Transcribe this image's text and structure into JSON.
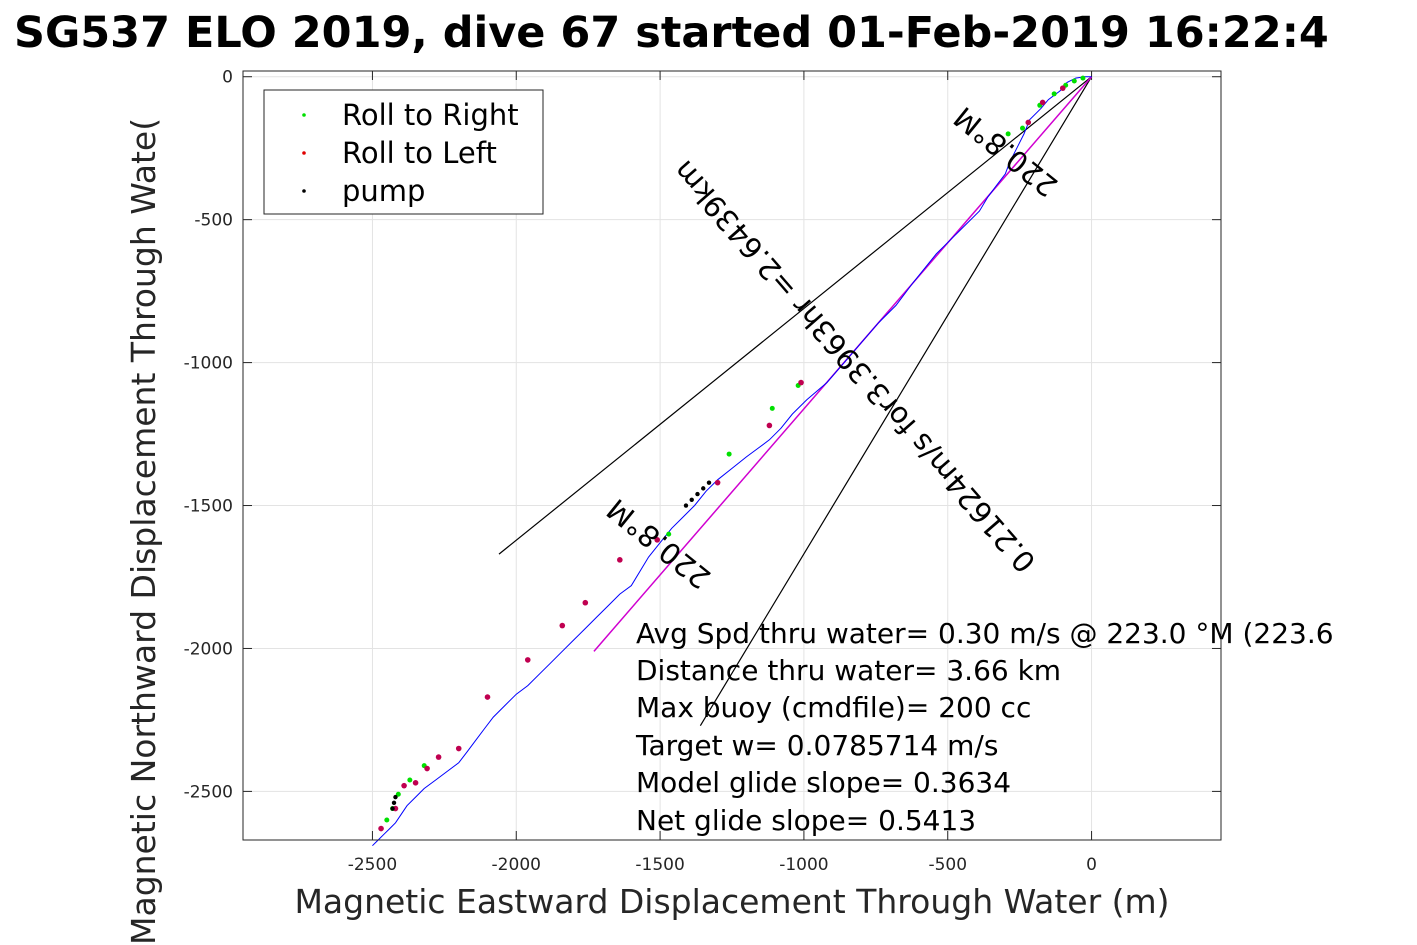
{
  "chart_data": {
    "type": "line",
    "title": "SG537 ELO 2019, dive 67 started 01-Feb-2019 16:22:4",
    "xlabel": "Magnetic Eastward Displacement Through Water (m)",
    "ylabel": "Magnetic Northward Displacement Through Wate(",
    "xlim": [
      -2950,
      450
    ],
    "ylim": [
      -2670,
      20
    ],
    "xticks": [
      -2500,
      -2000,
      -1500,
      -1000,
      -500,
      0
    ],
    "xtick_labels": [
      "-2500",
      "-2000",
      "-1500",
      "-1000",
      "-500",
      "0"
    ],
    "yticks": [
      0,
      -500,
      -1000,
      -1500,
      -2000,
      -2500
    ],
    "ytick_labels": [
      "0",
      "-500",
      "-1000",
      "-1500",
      "-2000",
      "-2500"
    ],
    "grid": true,
    "legend": {
      "placement": "top-left",
      "entries": [
        {
          "label": "Roll to Right",
          "color": "#00e000"
        },
        {
          "label": "Roll to Left",
          "color": "#e00000"
        },
        {
          "label": "pump",
          "color": "#000000"
        }
      ]
    },
    "colors": {
      "track": "#0000ff",
      "net_line": "#d000d0",
      "ref_lines": "#000000"
    },
    "track": {
      "x": [
        0,
        -25,
        -55,
        -85,
        -110,
        -150,
        -175,
        -215,
        -235,
        -260,
        -285,
        -300,
        -330,
        -360,
        -390,
        -440,
        -480,
        -540,
        -620,
        -680,
        -740,
        -800,
        -860,
        -920,
        -990,
        -1040,
        -1080,
        -1120,
        -1160,
        -1200,
        -1250,
        -1300,
        -1340,
        -1380,
        -1420,
        -1460,
        -1500,
        -1540,
        -1570,
        -1600,
        -1640,
        -1680,
        -1720,
        -1760,
        -1800,
        -1840,
        -1880,
        -1920,
        -1960,
        -2000,
        -2040,
        -2080,
        -2110,
        -2140,
        -2170,
        -2200,
        -2240,
        -2280,
        -2320,
        -2350,
        -2380,
        -2400,
        -2420,
        -2440,
        -2460,
        -2480,
        -2500
      ],
      "y": [
        0,
        0,
        -5,
        -20,
        -50,
        -80,
        -110,
        -150,
        -200,
        -250,
        -300,
        -340,
        -380,
        -420,
        -470,
        -520,
        -560,
        -620,
        -720,
        -800,
        -860,
        -930,
        -1000,
        -1070,
        -1130,
        -1180,
        -1230,
        -1270,
        -1300,
        -1330,
        -1370,
        -1410,
        -1450,
        -1500,
        -1540,
        -1580,
        -1630,
        -1680,
        -1730,
        -1780,
        -1810,
        -1850,
        -1890,
        -1930,
        -1970,
        -2010,
        -2050,
        -2090,
        -2130,
        -2160,
        -2200,
        -2240,
        -2280,
        -2320,
        -2360,
        -2400,
        -2430,
        -2460,
        -2490,
        -2520,
        -2550,
        -2580,
        -2610,
        -2630,
        -2650,
        -2670,
        -2690
      ]
    },
    "roll_right_points": {
      "x": [
        -30,
        -60,
        -90,
        -130,
        -180,
        -240,
        -290,
        -1020,
        -1110,
        -1260,
        -1470,
        -2200,
        -2320,
        -2370,
        -2410,
        -2430,
        -2450
      ],
      "y": [
        -5,
        -15,
        -30,
        -60,
        -100,
        -180,
        -200,
        -1080,
        -1160,
        -1320,
        -1600,
        -2350,
        -2410,
        -2460,
        -2510,
        -2560,
        -2600
      ]
    },
    "roll_left_points": {
      "x": [
        -100,
        -170,
        -220,
        -1010,
        -1120,
        -1300,
        -1510,
        -1640,
        -1760,
        -1840,
        -1960,
        -2100,
        -2200,
        -2270,
        -2310,
        -2350,
        -2390,
        -2420,
        -2470
      ],
      "y": [
        -40,
        -90,
        -160,
        -1070,
        -1220,
        -1420,
        -1620,
        -1690,
        -1840,
        -1920,
        -2040,
        -2170,
        -2350,
        -2380,
        -2420,
        -2470,
        -2480,
        -2560,
        -2630
      ]
    },
    "pump_points": {
      "x": [
        -1330,
        -1350,
        -1370,
        -1390,
        -1410,
        -2420,
        -2425,
        -2430
      ],
      "y": [
        -1420,
        -1440,
        -1460,
        -1480,
        -1500,
        -2520,
        -2540,
        -2560
      ]
    },
    "net_line": {
      "x": [
        0,
        -1730
      ],
      "y": [
        0,
        -2010
      ]
    },
    "ref_lines": [
      {
        "x": [
          0,
          -2060
        ],
        "y": [
          0,
          -1670
        ]
      },
      {
        "x": [
          0,
          -1360
        ],
        "y": [
          0,
          -2270
        ]
      }
    ],
    "line_labels": [
      "220.8°M",
      "0.21624m/s for3.3963hr =2.6439km",
      "220.8°M"
    ],
    "annotations": [
      "Avg Spd thru water=  0.30 m/s @ 223.0 °M (223.6",
      "Distance thru water=  3.66 km",
      "Max buoy (cmdfile)= 200 cc",
      "Target w= 0.0785714 m/s",
      "Model glide slope= 0.3634",
      "Net glide slope= 0.5413"
    ]
  }
}
